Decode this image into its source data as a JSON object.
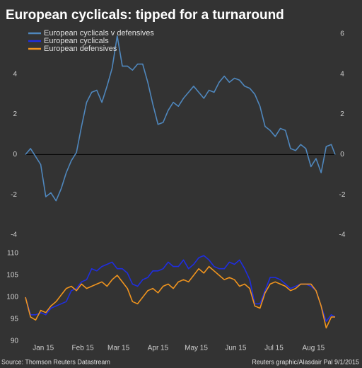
{
  "chart_data": [
    {
      "type": "line",
      "title": "European cyclicals: tipped for a turnaround",
      "x": [
        0,
        4,
        8,
        12,
        16,
        20,
        24,
        28,
        32,
        36,
        40,
        44,
        48,
        52,
        56,
        60,
        64,
        68,
        72,
        76,
        80,
        84,
        88,
        92,
        96,
        100,
        104,
        108,
        112,
        116,
        120,
        124,
        128,
        132,
        136,
        140,
        144,
        148,
        152,
        156,
        160,
        164,
        168,
        172,
        176,
        180,
        184,
        188,
        192,
        196,
        200,
        204,
        208,
        212,
        216,
        220,
        224,
        228,
        232,
        236,
        240,
        243
      ],
      "xlim": [
        0,
        243
      ],
      "series": [
        {
          "name": "European cyclicals v defensives",
          "color": "#4f87bd",
          "values": [
            0,
            0.3,
            -0.1,
            -0.5,
            -2.1,
            -1.9,
            -2.3,
            -1.7,
            -0.9,
            -0.3,
            0.1,
            1.4,
            2.6,
            3.1,
            3.2,
            2.6,
            3.4,
            4.3,
            5.9,
            4.4,
            4.4,
            4.2,
            4.5,
            4.5,
            3.6,
            2.5,
            1.5,
            1.6,
            2.2,
            2.6,
            2.4,
            2.8,
            3.1,
            3.4,
            3.1,
            2.8,
            3.2,
            3.1,
            3.6,
            3.9,
            3.6,
            3.8,
            3.7,
            3.4,
            3.3,
            3.0,
            2.4,
            1.4,
            1.2,
            0.9,
            1.3,
            1.2,
            0.3,
            0.2,
            0.5,
            0.3,
            -0.6,
            -0.2,
            -0.9,
            0.4,
            0.5,
            0.0
          ]
        }
      ],
      "ylim": [
        -4,
        6
      ],
      "yticks": [
        -4,
        -2,
        0,
        2,
        4
      ],
      "y2lim": [
        -4,
        6
      ],
      "y2ticks": [
        -4,
        -2,
        0,
        2,
        4,
        6
      ],
      "reference_line": 0
    },
    {
      "type": "line",
      "x": [
        0,
        4,
        8,
        12,
        16,
        20,
        24,
        28,
        32,
        36,
        40,
        44,
        48,
        52,
        56,
        60,
        64,
        68,
        72,
        76,
        80,
        84,
        88,
        92,
        96,
        100,
        104,
        108,
        112,
        116,
        120,
        124,
        128,
        132,
        136,
        140,
        144,
        148,
        152,
        156,
        160,
        164,
        168,
        172,
        176,
        180,
        184,
        188,
        192,
        196,
        200,
        204,
        208,
        212,
        216,
        220,
        224,
        228,
        232,
        236,
        240,
        243
      ],
      "xlim": [
        0,
        243
      ],
      "xticks": [
        {
          "value": 14,
          "label": "Jan 15"
        },
        {
          "value": 45,
          "label": "Feb 15"
        },
        {
          "value": 73,
          "label": "Mar 15"
        },
        {
          "value": 104,
          "label": "Apr 15"
        },
        {
          "value": 134,
          "label": "May 15"
        },
        {
          "value": 165,
          "label": "Jun 15"
        },
        {
          "value": 195,
          "label": "Jul 15"
        },
        {
          "value": 226,
          "label": "Aug 15"
        }
      ],
      "series": [
        {
          "name": "European cyclicals",
          "color": "#1f2ee0",
          "values": [
            100,
            96,
            96,
            96.5,
            96,
            97.5,
            98,
            98.5,
            99,
            101.5,
            102,
            103.5,
            104,
            106.5,
            106,
            107,
            107.5,
            108,
            106.5,
            106.5,
            105.5,
            103,
            102.5,
            104,
            104.5,
            106,
            106,
            106.5,
            108,
            107,
            107,
            108.5,
            106.5,
            107.5,
            109,
            109.5,
            108.5,
            107,
            106.5,
            106.5,
            108,
            107.5,
            108.5,
            106.5,
            104,
            98.5,
            98.5,
            101.5,
            104.5,
            104.5,
            104,
            103,
            102,
            102.5,
            103,
            103,
            102.5,
            101.5,
            98,
            94.5,
            96,
            95.5
          ]
        },
        {
          "name": "European defensives",
          "color": "#f0941e",
          "values": [
            100,
            95.5,
            94.8,
            97,
            96.5,
            98,
            99,
            100.5,
            102,
            102.5,
            101.5,
            103,
            102,
            102.5,
            103,
            103.5,
            102.5,
            104,
            105,
            103.5,
            102,
            99,
            98.5,
            100,
            101.5,
            102,
            101,
            102.5,
            103,
            102,
            103.5,
            104,
            103.5,
            105,
            106.5,
            105.5,
            107,
            106,
            105,
            104,
            104.5,
            104,
            102.5,
            103,
            102,
            98,
            97.5,
            101,
            103,
            103.5,
            103,
            102.5,
            101.5,
            102,
            103,
            103,
            103,
            101.5,
            98,
            93,
            95.5,
            95.5
          ]
        }
      ],
      "ylim": [
        90,
        110
      ],
      "yticks": [
        90,
        95,
        100,
        105,
        110
      ],
      "source": "Source: Thomson Reuters Datastream",
      "credit": "Reuters graphic/Alasdair Pal 9/1/2015"
    }
  ]
}
